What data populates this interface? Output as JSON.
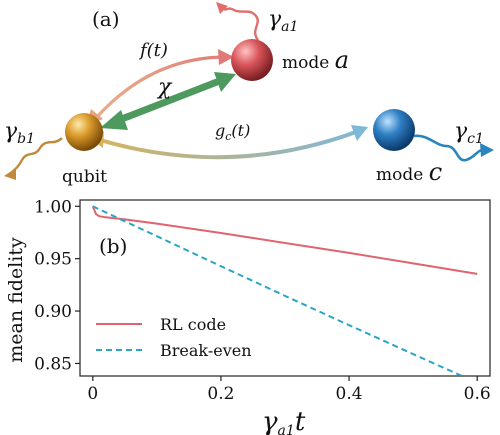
{
  "panel_a": {
    "label": "(a)",
    "nodes": {
      "qubit": {
        "label": "qubit",
        "color": "#d99a2b"
      },
      "mode_a": {
        "label_prefix": "mode ",
        "label_symbol": "a",
        "color": "#d9565b"
      },
      "mode_c": {
        "label_prefix": "mode ",
        "label_symbol": "c",
        "color": "#2f7fc4"
      }
    },
    "couplings": {
      "f": {
        "label": "f(t)",
        "color": "#e39a7a"
      },
      "chi": {
        "label": "χ",
        "color": "#4e9a5e"
      },
      "gc": {
        "label_main": "g",
        "label_sub": "c",
        "label_tail": "(t)",
        "color_start": "#d8b35a",
        "color_end": "#7fb7d8"
      }
    },
    "decays": {
      "a1": {
        "symbol": "γ",
        "sub": "a1",
        "color": "#e06e6e"
      },
      "b1": {
        "symbol": "γ",
        "sub": "b1",
        "color": "#c08a3a"
      },
      "c1": {
        "symbol": "γ",
        "sub": "c1",
        "color": "#2a84bd"
      }
    }
  },
  "panel_b": {
    "label": "(b)",
    "chart_data": {
      "type": "line",
      "ylabel": "mean fidelity",
      "xlabel_symbol": "γ",
      "xlabel_sub": "a1",
      "xlabel_tail": "t",
      "xlim": [
        -0.02,
        0.62
      ],
      "ylim": [
        0.838,
        1.006
      ],
      "xticks": [
        0,
        0.2,
        0.4,
        0.6
      ],
      "xtick_labels": [
        "0",
        "0.2",
        "0.4",
        "0.6"
      ],
      "yticks": [
        0.85,
        0.9,
        0.95,
        1.0
      ],
      "ytick_labels": [
        "0.85",
        "0.90",
        "0.95",
        "1.00"
      ],
      "legend_position": "lower-left",
      "series": [
        {
          "name": "RL code",
          "color": "#e06470",
          "style": "solid",
          "x": [
            0,
            0.005,
            0.01,
            0.02,
            0.05,
            0.1,
            0.2,
            0.3,
            0.4,
            0.5,
            0.6
          ],
          "y": [
            1.0,
            0.9925,
            0.9905,
            0.9895,
            0.9875,
            0.9835,
            0.9745,
            0.965,
            0.9555,
            0.9455,
            0.9355
          ]
        },
        {
          "name": "Break-even",
          "color": "#2aa6c4",
          "style": "dashed",
          "x": [
            0,
            0.05,
            0.1,
            0.15,
            0.2,
            0.25,
            0.3,
            0.35,
            0.4,
            0.45,
            0.5,
            0.55,
            0.6
          ],
          "y": [
            1.0,
            0.9857,
            0.9714,
            0.9571,
            0.9428,
            0.9287,
            0.9145,
            0.9005,
            0.8865,
            0.8727,
            0.8589,
            0.8452,
            0.8316
          ]
        }
      ]
    }
  }
}
